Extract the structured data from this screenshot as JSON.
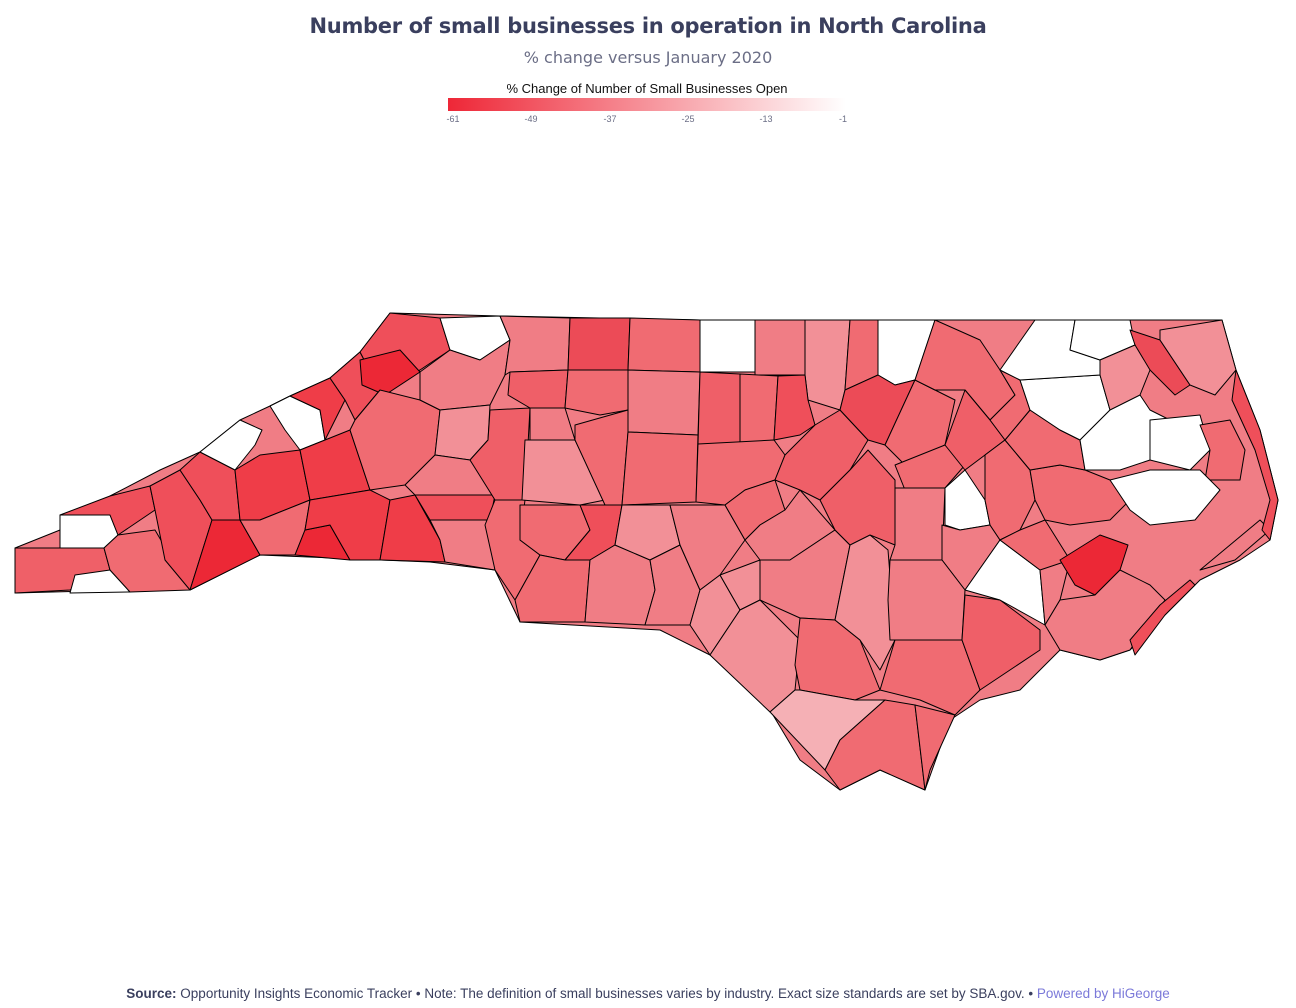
{
  "title": "Number of small businesses in operation in North Carolina",
  "subtitle": "% change versus January 2020",
  "legend": {
    "title": "% Change of Number of Small Businesses Open",
    "ticks": [
      "-61",
      "-49",
      "-37",
      "-25",
      "-13",
      "-1"
    ],
    "color_low": "#ee2737",
    "color_high": "#ffffff"
  },
  "map": {
    "region": "North Carolina",
    "type": "choropleth",
    "no_data_color": "#ffffff",
    "border_color": "#000000"
  },
  "footer": {
    "source_label": "Source:",
    "source_text": "Opportunity Insights Economic Tracker • Note: The definition of small businesses varies by industry. Exact size standards are set by SBA.gov. •",
    "powered_by": "Powered by HiGeorge"
  }
}
